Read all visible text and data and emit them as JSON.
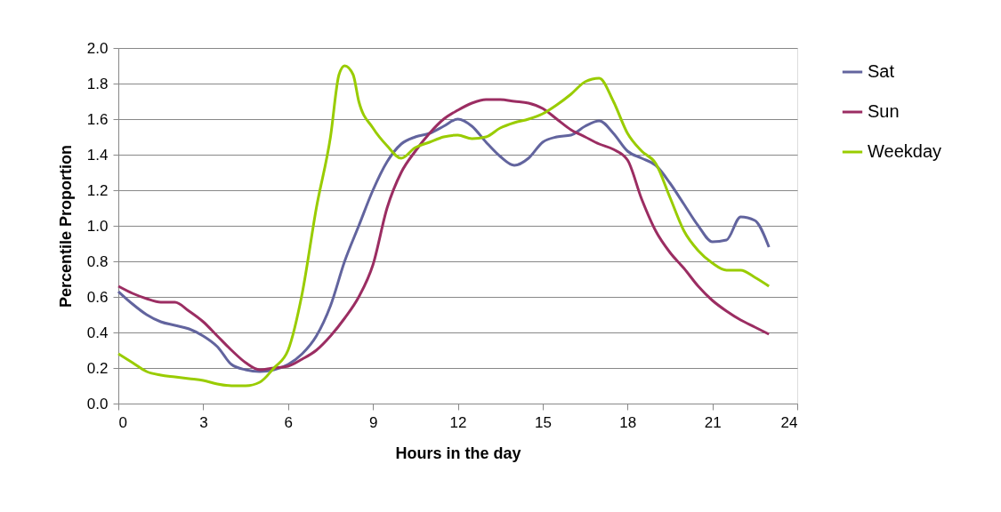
{
  "chart_data": {
    "type": "line",
    "xlabel": "Hours in the day",
    "ylabel": "Percentile Proportion",
    "xlim": [
      0,
      24
    ],
    "xticks": [
      0,
      3,
      6,
      9,
      12,
      15,
      18,
      21,
      24
    ],
    "ylim": [
      0,
      2.0
    ],
    "yticks": [
      {
        "value": 0,
        "label": "0.0"
      },
      {
        "value": 0.2,
        "label": "0.2"
      },
      {
        "value": 0.4,
        "label": "0.4"
      },
      {
        "value": 0.6,
        "label": "0.6"
      },
      {
        "value": 0.8,
        "label": "0.8"
      },
      {
        "value": 1.0,
        "label": "1.0"
      },
      {
        "value": 1.2,
        "label": "1.2"
      },
      {
        "value": 1.4,
        "label": "1.4"
      },
      {
        "value": 1.6,
        "label": "1.6"
      },
      {
        "value": 1.8,
        "label": "1.8"
      },
      {
        "value": 2.0,
        "label": "2.0"
      }
    ],
    "grid": "y",
    "legend": "right",
    "marker": "none",
    "line_style": "solid",
    "series": [
      {
        "name": "Sat",
        "color": "#62649e",
        "x": [
          0,
          0.5,
          1,
          1.5,
          2,
          2.5,
          3,
          3.5,
          4,
          4.5,
          5,
          5.5,
          6,
          6.5,
          7,
          7.5,
          8,
          8.5,
          9,
          9.5,
          10,
          10.5,
          11,
          11.5,
          12,
          12.5,
          13,
          13.5,
          14,
          14.5,
          15,
          15.5,
          16,
          16.5,
          17,
          17.5,
          18,
          18.5,
          19,
          19.5,
          20,
          20.5,
          21,
          21.5,
          22,
          22.5,
          23
        ],
        "values": [
          0.63,
          0.56,
          0.5,
          0.46,
          0.44,
          0.42,
          0.38,
          0.32,
          0.22,
          0.19,
          0.18,
          0.19,
          0.22,
          0.28,
          0.38,
          0.55,
          0.8,
          1.0,
          1.2,
          1.36,
          1.46,
          1.5,
          1.52,
          1.56,
          1.6,
          1.56,
          1.47,
          1.39,
          1.34,
          1.38,
          1.47,
          1.5,
          1.51,
          1.56,
          1.59,
          1.52,
          1.42,
          1.38,
          1.34,
          1.24,
          1.12,
          1.0,
          0.91,
          0.92,
          1.05,
          1.03,
          0.88
        ]
      },
      {
        "name": "Sun",
        "color": "#9b2d62",
        "x": [
          0,
          0.5,
          1,
          1.5,
          2,
          2.5,
          3,
          3.5,
          4,
          4.5,
          5,
          5.5,
          6,
          6.5,
          7,
          7.5,
          8,
          8.5,
          9,
          9.5,
          10,
          10.5,
          11,
          11.5,
          12,
          12.5,
          13,
          13.5,
          14,
          14.5,
          15,
          15.5,
          16,
          16.5,
          17,
          17.5,
          18,
          18.5,
          19,
          19.5,
          20,
          20.5,
          21,
          21.5,
          22,
          22.5,
          23
        ],
        "values": [
          0.66,
          0.62,
          0.59,
          0.57,
          0.57,
          0.52,
          0.46,
          0.38,
          0.3,
          0.23,
          0.19,
          0.2,
          0.21,
          0.25,
          0.3,
          0.38,
          0.48,
          0.6,
          0.78,
          1.1,
          1.3,
          1.42,
          1.52,
          1.6,
          1.65,
          1.69,
          1.71,
          1.71,
          1.7,
          1.69,
          1.66,
          1.6,
          1.54,
          1.5,
          1.46,
          1.43,
          1.37,
          1.15,
          0.97,
          0.85,
          0.76,
          0.66,
          0.58,
          0.52,
          0.47,
          0.43,
          0.39
        ]
      },
      {
        "name": "Weekday",
        "color": "#99cc00",
        "x": [
          0,
          0.5,
          1,
          1.5,
          2,
          2.5,
          3,
          3.5,
          4,
          4.5,
          5,
          5.5,
          6,
          6.5,
          7,
          7.5,
          7.8,
          8,
          8.3,
          8.5,
          9,
          9.5,
          10,
          10.5,
          11,
          11.5,
          12,
          12.5,
          13,
          13.5,
          14,
          14.5,
          15,
          15.5,
          16,
          16.5,
          17,
          17.5,
          18,
          18.5,
          19,
          19.5,
          20,
          20.5,
          21,
          21.5,
          22,
          22.5,
          23
        ],
        "values": [
          0.28,
          0.23,
          0.18,
          0.16,
          0.15,
          0.14,
          0.13,
          0.11,
          0.1,
          0.1,
          0.12,
          0.2,
          0.3,
          0.62,
          1.1,
          1.5,
          1.85,
          1.9,
          1.85,
          1.7,
          1.55,
          1.45,
          1.38,
          1.44,
          1.47,
          1.5,
          1.51,
          1.49,
          1.5,
          1.55,
          1.58,
          1.6,
          1.63,
          1.68,
          1.74,
          1.81,
          1.83,
          1.7,
          1.52,
          1.42,
          1.35,
          1.16,
          0.97,
          0.86,
          0.79,
          0.75,
          0.75,
          0.71,
          0.66
        ]
      }
    ]
  }
}
